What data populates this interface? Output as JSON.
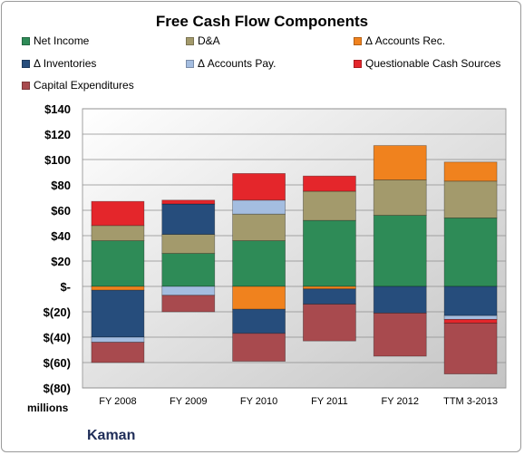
{
  "chart_data": {
    "type": "bar",
    "stacked": true,
    "title": "Free Cash Flow Components",
    "xlabel": "",
    "ylabel": "",
    "units_label": "millions",
    "company": "Kaman",
    "categories": [
      "FY 2008",
      "FY 2009",
      "FY 2010",
      "FY 2011",
      "FY 2012",
      "TTM 3-2013"
    ],
    "ylim": [
      -80,
      140
    ],
    "ytick_values": [
      -80,
      -60,
      -40,
      -20,
      0,
      20,
      40,
      60,
      80,
      100,
      120,
      140
    ],
    "ytick_labels": [
      "$(80)",
      "$(60)",
      "$(40)",
      "$(20)",
      "$-",
      "$20",
      "$40",
      "$60",
      "$80",
      "$100",
      "$120",
      "$140"
    ],
    "grid": true,
    "legend_position": "top",
    "series": [
      {
        "name": "Net Income",
        "color": "#2e8b57",
        "values": [
          36,
          26,
          36,
          52,
          56,
          54
        ]
      },
      {
        "name": "D&A",
        "color": "#a39a6c",
        "values": [
          12,
          15,
          21,
          23,
          28,
          29
        ]
      },
      {
        "name": "Δ Accounts Rec.",
        "color": "#f0821e",
        "values": [
          -3,
          0,
          -18,
          -2,
          27,
          15
        ]
      },
      {
        "name": "Δ Inventories",
        "color": "#264d7c",
        "values": [
          -37,
          24,
          -19,
          -12,
          -21,
          -23
        ]
      },
      {
        "name": "Δ Accounts Pay.",
        "color": "#a4bde0",
        "values": [
          -4,
          -7,
          11,
          0,
          0,
          -3
        ]
      },
      {
        "name": "Questionable Cash Sources",
        "color": "#e4262b",
        "values": [
          19,
          3,
          21,
          12,
          0,
          -3
        ]
      },
      {
        "name": "Capital Expenditures",
        "color": "#a84a4e",
        "values": [
          -16,
          -13,
          -22,
          -29,
          -34,
          -40
        ]
      }
    ]
  }
}
